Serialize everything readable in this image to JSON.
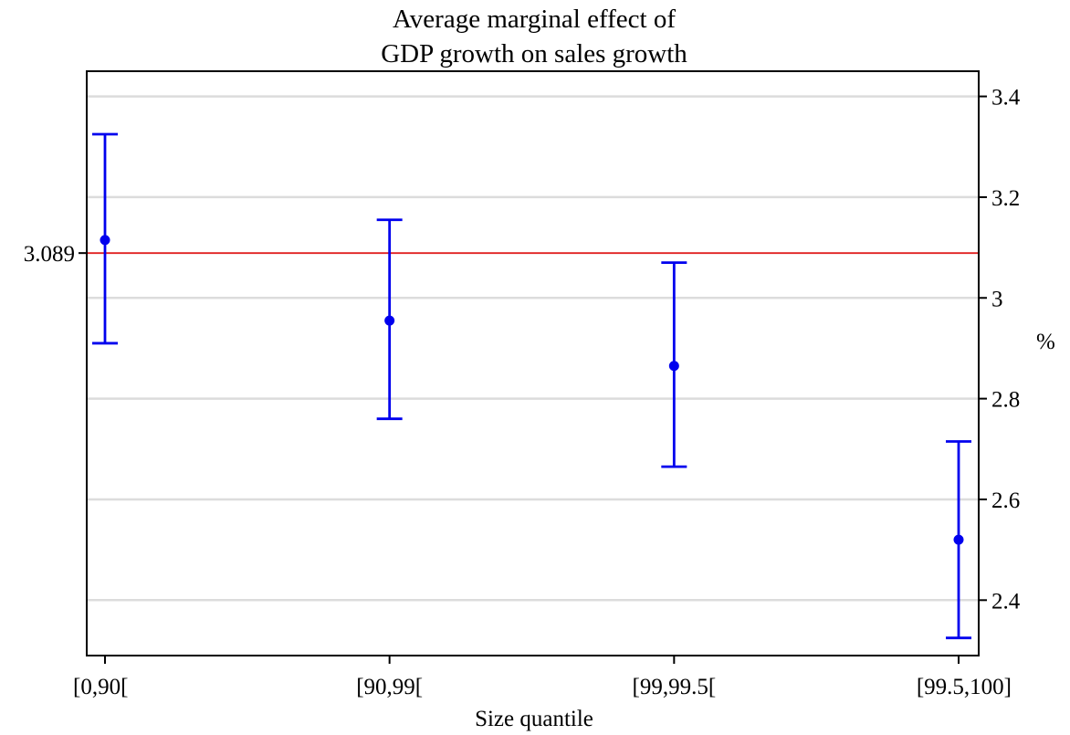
{
  "chart_data": {
    "type": "scatter",
    "title_lines": [
      "Average marginal effect of",
      "GDP growth on sales growth"
    ],
    "xlabel": "Size quantile",
    "ylabel": "%",
    "categories": [
      "[0,90[",
      "[90,99[",
      "[99,99.5[",
      "[99.5,100]"
    ],
    "series": [
      {
        "estimate": [
          3.115,
          2.955,
          2.865,
          2.52
        ],
        "lower": [
          2.91,
          2.76,
          2.665,
          2.325
        ],
        "upper": [
          3.325,
          3.155,
          3.07,
          2.715
        ]
      }
    ],
    "ylim": [
      2.29,
      3.45
    ],
    "yticks": [
      2.4,
      2.6,
      2.8,
      3,
      3.2,
      3.4
    ],
    "ytick_labels": [
      "2.4",
      "2.6",
      "2.8",
      "3",
      "3.2",
      "3.4"
    ],
    "y_axis_side": "right",
    "reference_line": {
      "value": 3.089,
      "label": "3.089",
      "side": "left"
    },
    "grid": "horizontal",
    "colors": {
      "series": "#0000ee",
      "reference": "#e02020",
      "grid": "#dcdcdc",
      "axis": "#000000"
    }
  }
}
